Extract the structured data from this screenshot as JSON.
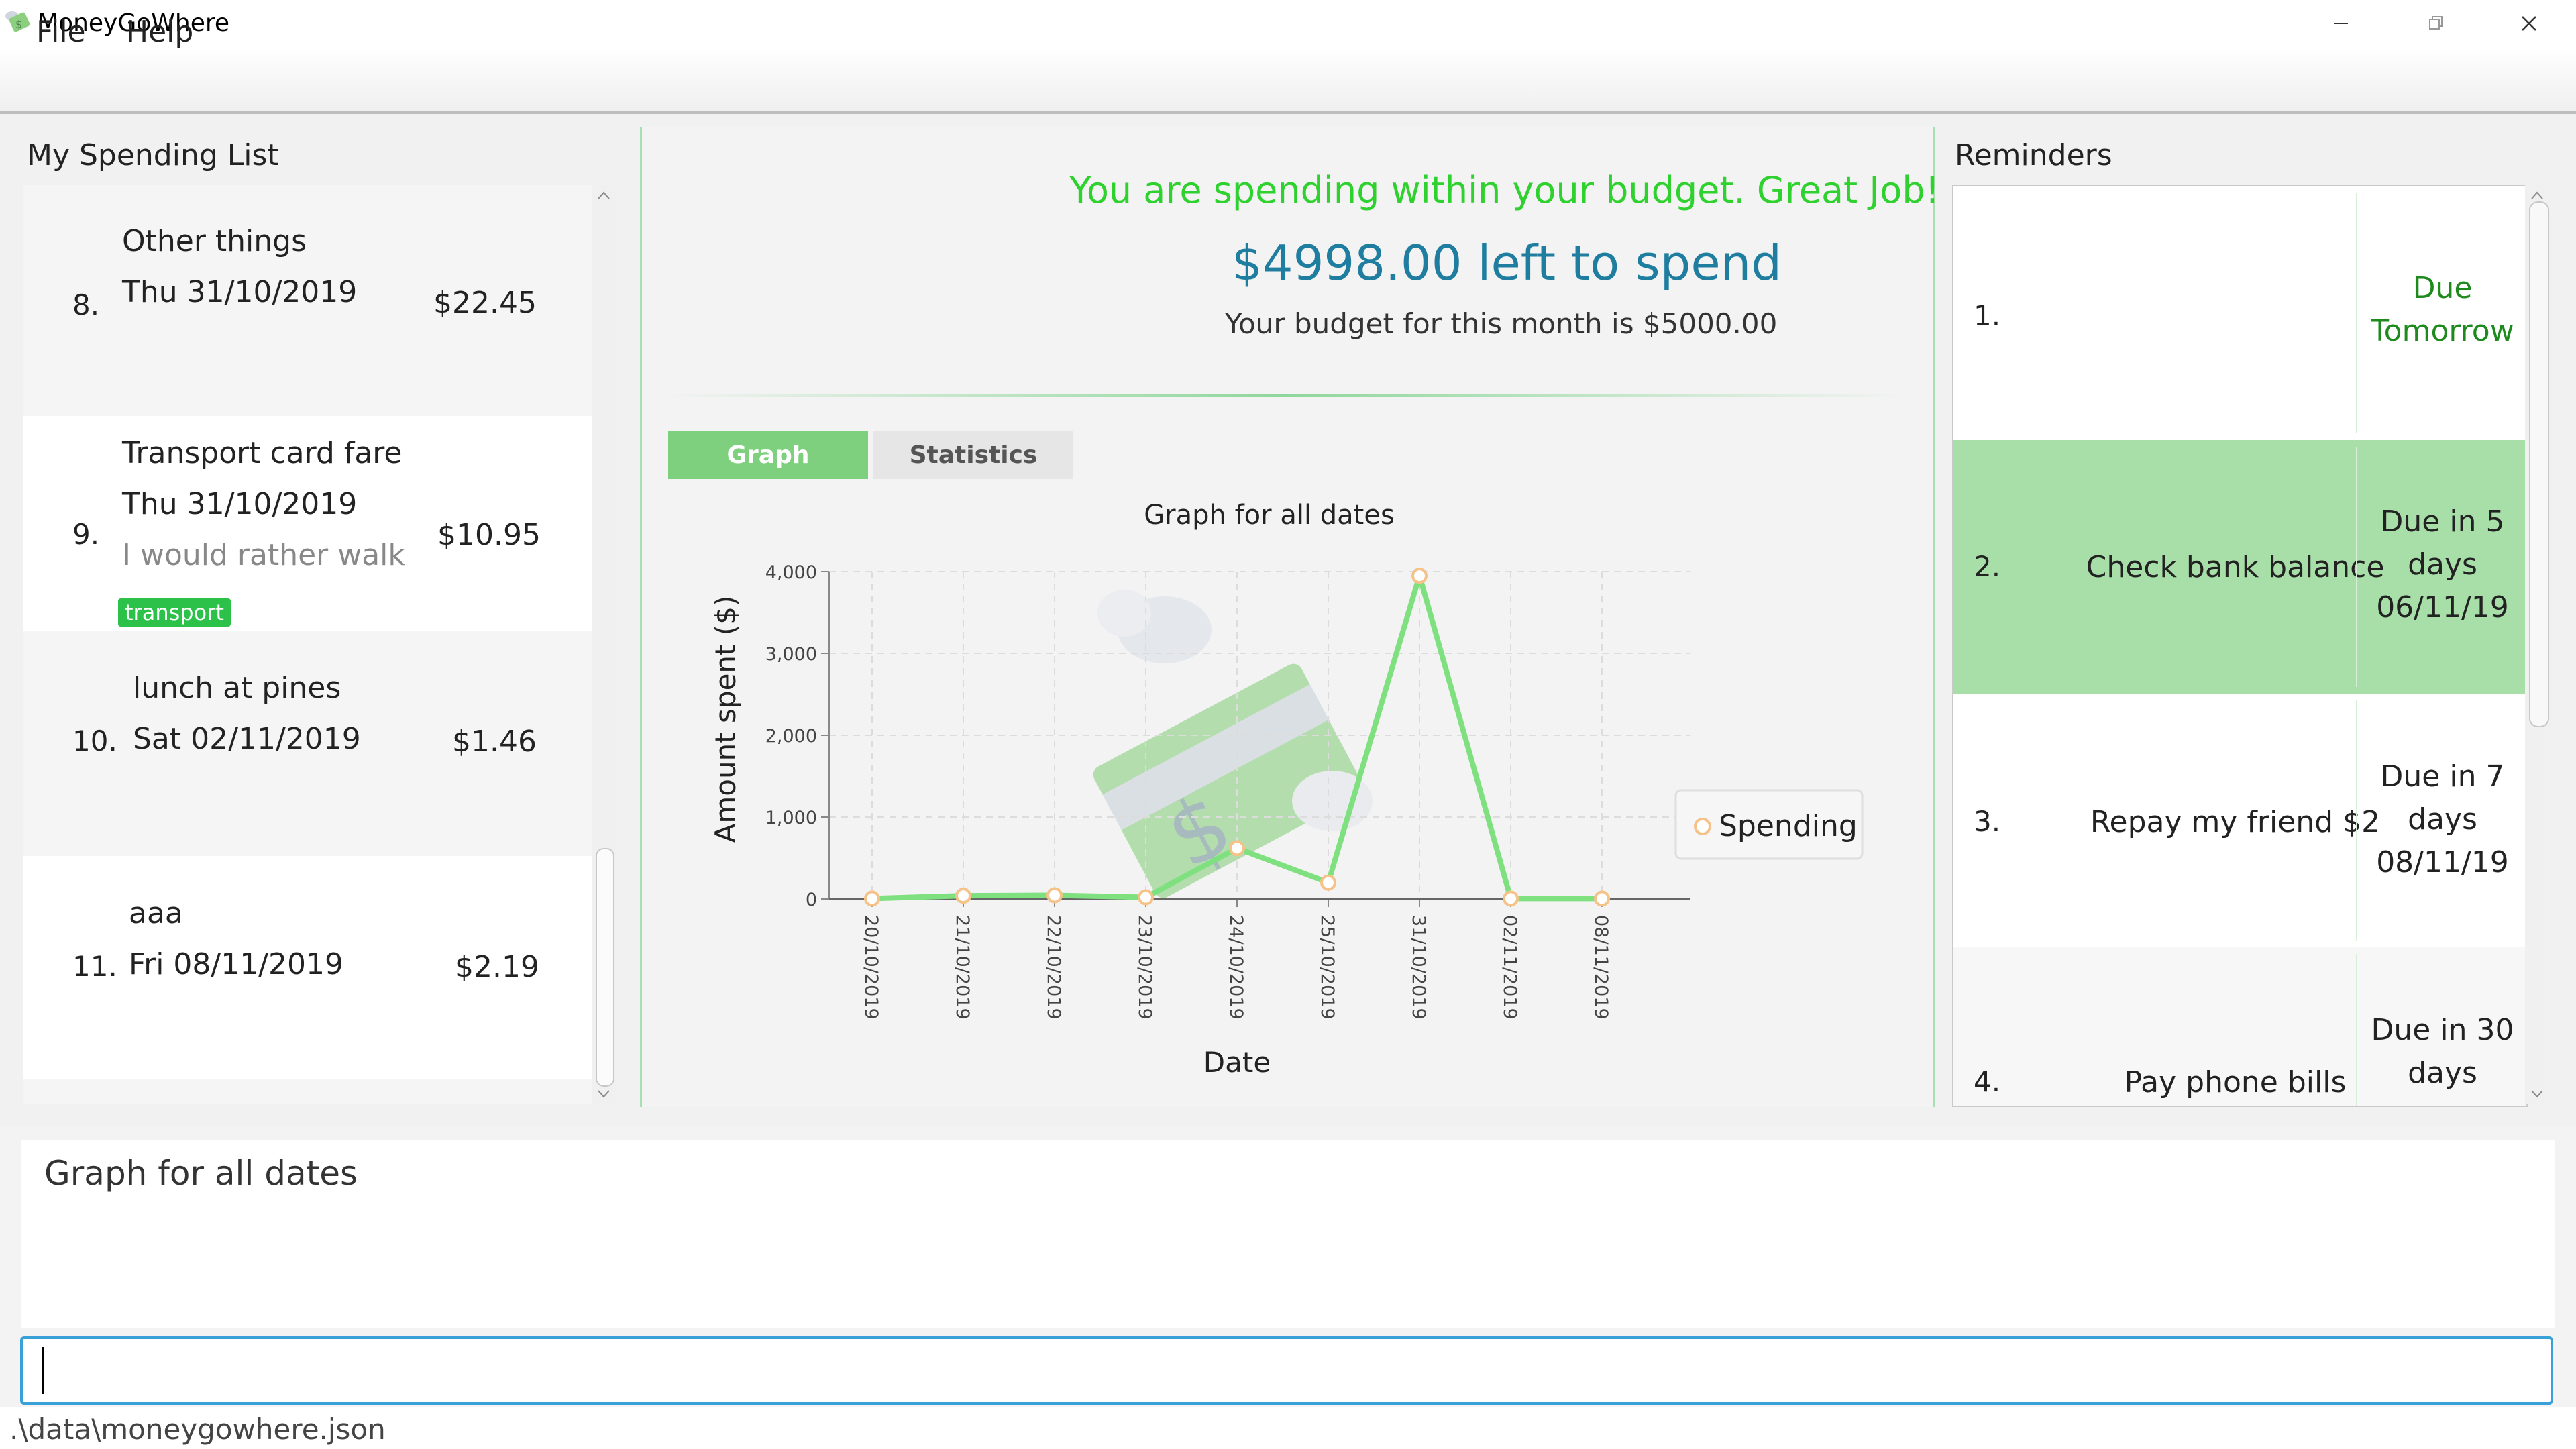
{
  "window": {
    "title": "MoneyGoWhere",
    "icon": "money-wings-icon"
  },
  "menu": {
    "file": "File",
    "help": "Help"
  },
  "spending_list": {
    "title": "My Spending List",
    "items": [
      {
        "index": "8.",
        "name": "Other things",
        "date": "Thu 31/10/2019",
        "remark": "",
        "amount": "$22.45",
        "tags": []
      },
      {
        "index": "9.",
        "name": "Transport card fare",
        "date": "Thu 31/10/2019",
        "remark": "I would rather walk",
        "amount": "$10.95",
        "tags": [
          "transport"
        ]
      },
      {
        "index": "10.",
        "name": "lunch at pines",
        "date": "Sat 02/11/2019",
        "remark": "",
        "amount": "$1.46",
        "tags": []
      },
      {
        "index": "11.",
        "name": "aaa",
        "date": "Fri 08/11/2019",
        "remark": "",
        "amount": "$2.19",
        "tags": []
      }
    ]
  },
  "budget": {
    "status_message": "You are spending within your budget. Great Job!",
    "left_to_spend": "$4998.00 left to spend",
    "budget_line": "Your budget for this month is $5000.00"
  },
  "tabs": {
    "graph": "Graph",
    "statistics": "Statistics",
    "active": "Graph"
  },
  "chart_data": {
    "type": "line",
    "title": "Graph for all dates",
    "xlabel": "Date",
    "ylabel": "Amount spent ($)",
    "categories": [
      "20/10/2019",
      "21/10/2019",
      "22/10/2019",
      "23/10/2019",
      "24/10/2019",
      "25/10/2019",
      "31/10/2019",
      "02/11/2019",
      "08/11/2019"
    ],
    "series": [
      {
        "name": "Spending",
        "values": [
          5,
          40,
          45,
          20,
          620,
          200,
          3950,
          5,
          5
        ]
      }
    ],
    "ylim": [
      0,
      4000
    ],
    "yticks": [
      0,
      1000,
      2000,
      3000,
      4000
    ],
    "ytick_labels": [
      "0",
      "1,000",
      "2,000",
      "3,000",
      "4,000"
    ],
    "grid": true,
    "legend_position": "right",
    "line_color": "#7fe07f"
  },
  "reminders": {
    "title": "Reminders",
    "items": [
      {
        "index": "1.",
        "description": "",
        "due": [
          "Due",
          "Tomorrow"
        ],
        "selected": false,
        "due_color": "green"
      },
      {
        "index": "2.",
        "description": "Check bank balance",
        "due": [
          "Due in 5",
          "days",
          "06/11/19"
        ],
        "selected": true,
        "due_color": "default"
      },
      {
        "index": "3.",
        "description": "Repay my friend $2",
        "due": [
          "Due in 7",
          "days",
          "08/11/19"
        ],
        "selected": false,
        "due_color": "default"
      },
      {
        "index": "4.",
        "description": "Pay phone bills",
        "due": [
          "Due in 30",
          "days"
        ],
        "selected": false,
        "due_color": "default"
      }
    ]
  },
  "result_display": {
    "text": "Graph for all dates"
  },
  "command_box": {
    "value": "",
    "placeholder": ""
  },
  "status_bar": {
    "path": ".\\data\\moneygowhere.json"
  }
}
